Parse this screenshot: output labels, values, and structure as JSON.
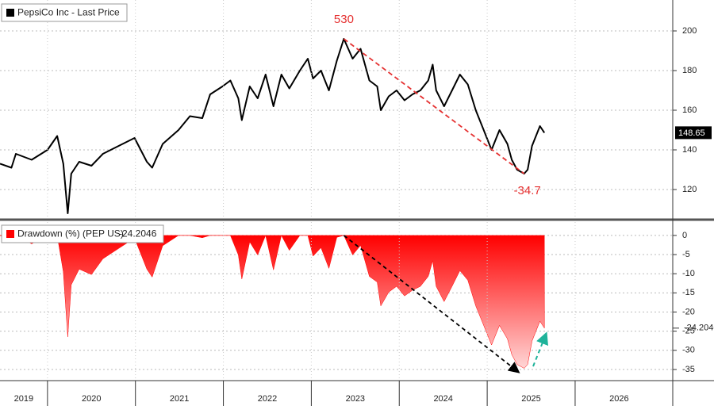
{
  "chart_data": [
    {
      "type": "line",
      "series": [
        {
          "name": "PepsiCo Inc - Last Price",
          "color": "#000000",
          "x": [
            2019.46,
            2019.59,
            2019.64,
            2019.82,
            2020.0,
            2020.11,
            2020.18,
            2020.23,
            2020.27,
            2020.36,
            2020.5,
            2020.63,
            2020.81,
            2020.99,
            2021.13,
            2021.19,
            2021.31,
            2021.49,
            2021.62,
            2021.76,
            2021.85,
            2021.99,
            2022.08,
            2022.17,
            2022.21,
            2022.3,
            2022.39,
            2022.48,
            2022.57,
            2022.66,
            2022.75,
            2022.87,
            2022.96,
            2023.02,
            2023.11,
            2023.2,
            2023.29,
            2023.37,
            2023.47,
            2023.56,
            2023.66,
            2023.75,
            2023.79,
            2023.88,
            2023.97,
            2024.06,
            2024.15,
            2024.24,
            2024.33,
            2024.38,
            2024.42,
            2024.51,
            2024.6,
            2024.69,
            2024.78,
            2024.87,
            2024.96,
            2025.05,
            2025.14,
            2025.23,
            2025.28,
            2025.34,
            2025.42,
            2025.46,
            2025.51,
            2025.6,
            2025.65
          ],
          "values": [
            133,
            131,
            138,
            135,
            140,
            147,
            133,
            108,
            128,
            134,
            132,
            138,
            142,
            146,
            134,
            131,
            143,
            150,
            157,
            156,
            168,
            172,
            175,
            166,
            155,
            172,
            166,
            178,
            162,
            178,
            171,
            180,
            186,
            176,
            180,
            170,
            185,
            196,
            186,
            191,
            175,
            172,
            160,
            167,
            170,
            165,
            168,
            170,
            175,
            183,
            170,
            162,
            170,
            178,
            173,
            160,
            150,
            140,
            150,
            143,
            135,
            130,
            128,
            130,
            142,
            152,
            148.65
          ]
        }
      ],
      "annotations": [
        {
          "text": "530"
        },
        {
          "text": "-34.7"
        }
      ],
      "xlim": [
        2019.46,
        2027.11
      ],
      "ylim": [
        105.6,
        215.6
      ],
      "yticks": [
        120,
        140,
        160,
        180,
        200
      ],
      "grid": true
    },
    {
      "type": "area",
      "series": [
        {
          "name": "Drawdown (%) (PEP US)",
          "color": "#ff0000",
          "x": [
            2019.46,
            2019.59,
            2019.64,
            2019.82,
            2020.0,
            2020.11,
            2020.18,
            2020.23,
            2020.27,
            2020.36,
            2020.5,
            2020.63,
            2020.81,
            2020.99,
            2021.13,
            2021.19,
            2021.31,
            2021.49,
            2021.62,
            2021.76,
            2021.85,
            2021.99,
            2022.08,
            2022.17,
            2022.21,
            2022.3,
            2022.39,
            2022.48,
            2022.57,
            2022.66,
            2022.75,
            2022.87,
            2022.96,
            2023.02,
            2023.11,
            2023.2,
            2023.29,
            2023.37,
            2023.47,
            2023.56,
            2023.66,
            2023.75,
            2023.79,
            2023.88,
            2023.97,
            2024.06,
            2024.15,
            2024.24,
            2024.33,
            2024.38,
            2024.42,
            2024.51,
            2024.6,
            2024.69,
            2024.78,
            2024.87,
            2024.96,
            2025.05,
            2025.14,
            2025.23,
            2025.28,
            2025.34,
            2025.42,
            2025.46,
            2025.51,
            2025.6,
            2025.65
          ],
          "values": [
            0,
            -1.5,
            0,
            -2.2,
            0,
            0,
            -9.5,
            -26.5,
            -12.9,
            -8.8,
            -10.2,
            -6.1,
            -3.4,
            -0.7,
            -8.8,
            -10.9,
            -2.7,
            0,
            0,
            -0.6,
            0,
            0,
            0,
            -5.1,
            -11.4,
            -1.7,
            -5.1,
            0,
            -9.0,
            0,
            -3.9,
            0,
            0,
            -5.4,
            -3.2,
            -8.6,
            -0.5,
            0,
            -5.1,
            -2.6,
            -10.7,
            -12.2,
            -18.4,
            -14.8,
            -13.3,
            -15.8,
            -14.3,
            -13.3,
            -10.7,
            -6.6,
            -13.3,
            -17.3,
            -13.3,
            -9.2,
            -11.7,
            -18.4,
            -23.5,
            -28.6,
            -23.5,
            -27.0,
            -31.1,
            -33.7,
            -34.7,
            -33.7,
            -27.6,
            -22.4,
            -24.2046
          ]
        }
      ],
      "xlim": [
        2019.46,
        2027.11
      ],
      "xticks": [
        2019,
        2020,
        2021,
        2022,
        2023,
        2024,
        2025,
        2026
      ],
      "ylim": [
        -37.5,
        3.5
      ],
      "yticks": [
        0,
        -5,
        -10,
        -15,
        -20,
        -25,
        -30,
        -35
      ],
      "grid": true
    }
  ]
}
